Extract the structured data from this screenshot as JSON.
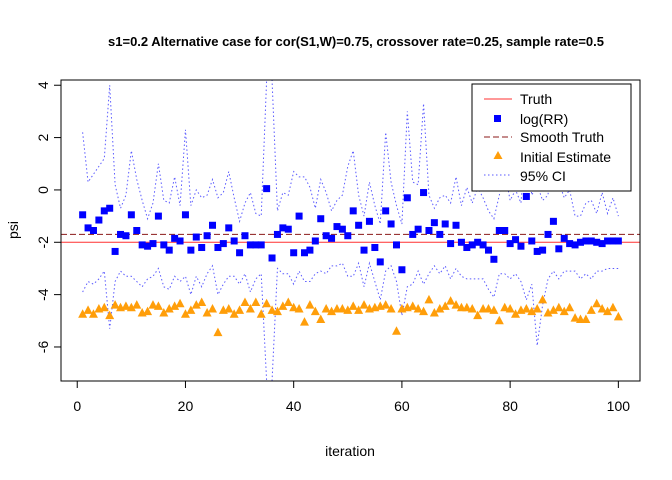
{
  "chart_data": {
    "type": "scatter",
    "title": "s1=0.2 Alternative case for cor(S1,W)=0.75, crossover rate=0.25, sample rate=0.5",
    "xlabel": "iteration",
    "ylabel": "psi",
    "xlim": [
      -3,
      104
    ],
    "ylim": [
      -7.3,
      4.2
    ],
    "xticks": [
      0,
      20,
      40,
      60,
      80,
      100
    ],
    "xtick_labels": [
      "0",
      "20",
      "40",
      "60",
      "80",
      "100"
    ],
    "yticks": [
      -6,
      -4,
      -2,
      0,
      2,
      4
    ],
    "ytick_labels": [
      "-6",
      "-4",
      "-2",
      "0",
      "2",
      "4"
    ],
    "grid": false,
    "legend_position": "top-right",
    "colors": {
      "truth": "#ff3030",
      "log_rr": "#0000ff",
      "smooth_truth": "#8b1a1a",
      "initial_estimate": "#ff9e0a",
      "ci": "#5a5aff"
    },
    "truth": -2.0,
    "smooth_truth": -1.7,
    "legend": {
      "truth": "Truth",
      "log_rr": "log(RR)",
      "smooth_truth": "Smooth Truth",
      "initial_estimate": "Initial Estimate",
      "ci": "95% CI"
    },
    "x": [
      1,
      2,
      3,
      4,
      5,
      6,
      7,
      8,
      9,
      10,
      11,
      12,
      13,
      14,
      15,
      16,
      17,
      18,
      19,
      20,
      21,
      22,
      23,
      24,
      25,
      26,
      27,
      28,
      29,
      30,
      31,
      32,
      33,
      34,
      35,
      36,
      37,
      38,
      39,
      40,
      41,
      42,
      43,
      44,
      45,
      46,
      47,
      48,
      49,
      50,
      51,
      52,
      53,
      54,
      55,
      56,
      57,
      58,
      59,
      60,
      61,
      62,
      63,
      64,
      65,
      66,
      67,
      68,
      69,
      70,
      71,
      72,
      73,
      74,
      75,
      76,
      77,
      78,
      79,
      80,
      81,
      82,
      83,
      84,
      85,
      86,
      87,
      88,
      89,
      90,
      91,
      92,
      93,
      94,
      95,
      96,
      97,
      98,
      99,
      100
    ],
    "log_rr": [
      -0.95,
      -1.45,
      -1.55,
      -1.15,
      -0.8,
      -0.7,
      -2.35,
      -1.7,
      -1.75,
      -0.95,
      -1.55,
      -2.1,
      -2.15,
      -2.05,
      -1.0,
      -2.1,
      -2.3,
      -1.85,
      -1.95,
      -0.95,
      -2.3,
      -1.8,
      -2.2,
      -1.75,
      -1.35,
      -2.2,
      -2.05,
      -1.45,
      -1.95,
      -2.4,
      -1.75,
      -2.1,
      -2.1,
      -2.1,
      0.05,
      -2.6,
      -1.7,
      -1.45,
      -1.5,
      -2.4,
      -1.0,
      -2.4,
      -2.3,
      -1.95,
      -1.1,
      -1.75,
      -1.85,
      -1.4,
      -1.5,
      -1.75,
      -0.8,
      -1.35,
      -2.3,
      -1.2,
      -2.2,
      -2.75,
      -0.8,
      -1.3,
      -2.1,
      -3.05,
      -0.3,
      -1.7,
      -1.5,
      -0.1,
      -1.55,
      -1.25,
      -1.7,
      -1.3,
      -2.05,
      -1.35,
      -2.0,
      -2.2,
      -2.1,
      -2.0,
      -2.1,
      -2.3,
      -2.65,
      -1.55,
      -1.55,
      -2.05,
      -1.9,
      -2.15,
      -0.25,
      -1.95,
      -2.35,
      -2.3,
      -1.7,
      -1.2,
      -2.25,
      -1.85,
      -2.05,
      -2.1,
      -2.0,
      -1.95,
      -1.95,
      -2.0,
      -2.05,
      -1.95,
      -1.95,
      -1.95
    ],
    "initial_estimate": [
      -4.75,
      -4.6,
      -4.75,
      -4.55,
      -4.5,
      -4.8,
      -4.4,
      -4.5,
      -4.45,
      -4.5,
      -4.4,
      -4.7,
      -4.65,
      -4.4,
      -4.45,
      -4.7,
      -4.55,
      -4.45,
      -4.35,
      -4.75,
      -4.6,
      -4.4,
      -4.3,
      -4.7,
      -4.55,
      -5.45,
      -4.6,
      -4.55,
      -4.75,
      -4.6,
      -4.3,
      -4.55,
      -4.3,
      -4.75,
      -4.35,
      -4.6,
      -4.65,
      -4.45,
      -4.3,
      -4.5,
      -4.55,
      -5.05,
      -4.4,
      -4.65,
      -4.95,
      -4.55,
      -4.65,
      -4.55,
      -4.55,
      -4.6,
      -4.45,
      -4.6,
      -4.4,
      -4.55,
      -4.5,
      -4.45,
      -4.4,
      -4.55,
      -5.4,
      -4.55,
      -4.5,
      -4.45,
      -4.55,
      -4.65,
      -4.2,
      -4.7,
      -4.55,
      -4.45,
      -4.25,
      -4.4,
      -4.5,
      -4.5,
      -4.55,
      -4.8,
      -4.55,
      -4.55,
      -4.6,
      -5.0,
      -4.5,
      -4.55,
      -4.75,
      -4.6,
      -4.55,
      -4.65,
      -4.55,
      -4.2,
      -4.7,
      -4.6,
      -4.5,
      -4.65,
      -4.5,
      -4.9,
      -4.95,
      -4.95,
      -4.6,
      -4.35,
      -4.55,
      -4.65,
      -4.5,
      -4.85
    ],
    "ci_upper": [
      2.2,
      0.3,
      0.6,
      0.9,
      1.2,
      4.0,
      0.2,
      -0.7,
      -0.2,
      1.5,
      0.4,
      -0.4,
      -1.1,
      -0.5,
      1.0,
      -0.4,
      -0.5,
      0.5,
      -0.6,
      2.3,
      -0.6,
      0.0,
      -0.3,
      -0.2,
      0.4,
      -0.3,
      -0.1,
      0.7,
      -0.3,
      -1.2,
      -0.5,
      -0.1,
      -0.9,
      -1.0,
      4.5,
      4.3,
      -0.8,
      -0.1,
      -0.2,
      0.7,
      0.5,
      0.5,
      0.1,
      -0.7,
      0.4,
      -0.1,
      -0.8,
      -0.4,
      -0.2,
      0.9,
      1.5,
      -0.2,
      -1.0,
      0.3,
      -0.6,
      -1.3,
      2.2,
      0.3,
      -0.6,
      -1.3,
      3.0,
      0.3,
      0.2,
      3.3,
      -0.2,
      -0.7,
      -0.3,
      -0.2,
      -0.5,
      0.5,
      -0.6,
      0.1,
      -0.5,
      0.1,
      -0.3,
      -0.8,
      -1.1,
      -0.2,
      0.7,
      -0.4,
      0.0,
      -0.5,
      2.0,
      -0.2,
      0.2,
      -0.4,
      -0.2,
      2.3,
      0.3,
      -0.3,
      0.0,
      -1.0,
      -1.0,
      -0.5,
      -0.4,
      -0.9,
      -0.1,
      -0.9,
      -0.3,
      -1.0
    ],
    "ci_lower": [
      -3.9,
      -3.5,
      -3.6,
      -3.4,
      -3.1,
      -5.3,
      -3.5,
      -3.1,
      -3.3,
      -3.3,
      -3.5,
      -3.7,
      -3.4,
      -3.3,
      -3.0,
      -3.7,
      -3.8,
      -3.3,
      -3.5,
      -3.3,
      -4.0,
      -3.3,
      -3.7,
      -3.2,
      -2.9,
      -4.0,
      -3.6,
      -3.3,
      -3.3,
      -3.6,
      -3.2,
      -3.9,
      -3.4,
      -3.2,
      -7.3,
      -7.3,
      -3.0,
      -3.2,
      -3.2,
      -3.6,
      -3.1,
      -3.5,
      -3.5,
      -3.2,
      -3.1,
      -3.2,
      -2.9,
      -2.9,
      -2.8,
      -3.3,
      -3.3,
      -2.8,
      -3.7,
      -2.8,
      -3.5,
      -4.2,
      -3.1,
      -2.9,
      -3.5,
      -4.8,
      -3.7,
      -3.6,
      -3.1,
      -3.6,
      -3.2,
      -2.9,
      -3.2,
      -2.9,
      -3.4,
      -3.0,
      -3.3,
      -3.4,
      -3.4,
      -3.4,
      -3.4,
      -3.8,
      -4.1,
      -3.2,
      -3.2,
      -3.4,
      -3.2,
      -3.5,
      -4.2,
      -3.6,
      -5.95,
      -4.4,
      -3.4,
      -3.1,
      -3.4,
      -3.1,
      -3.1,
      -3.1,
      -3.4,
      -3.2,
      -3.4,
      -3.1,
      -3.1,
      -3.0,
      -3.0,
      -3.0
    ]
  }
}
